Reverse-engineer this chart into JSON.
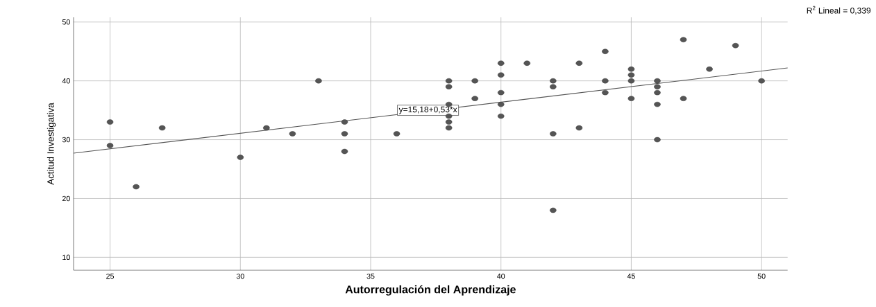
{
  "chart_data": {
    "type": "scatter",
    "xlabel": "Autorregulación del Aprendizaje",
    "ylabel": "Actitud Investigativa",
    "xlim": [
      23.6,
      51
    ],
    "ylim": [
      7.8,
      50.8
    ],
    "xticks": [
      25,
      30,
      35,
      40,
      45,
      50
    ],
    "yticks": [
      10,
      20,
      30,
      40,
      50
    ],
    "grid": true,
    "series": [
      {
        "type": "scatter",
        "color": "#555555",
        "marker": "circle",
        "x": [
          25,
          25,
          26,
          27,
          30,
          31,
          32,
          33,
          34,
          34,
          34,
          36,
          38,
          38,
          38,
          38,
          38,
          38,
          39,
          39,
          40,
          40,
          40,
          40,
          40,
          41,
          42,
          42,
          42,
          42,
          43,
          43,
          44,
          44,
          44,
          45,
          45,
          45,
          45,
          46,
          46,
          46,
          46,
          46,
          47,
          47,
          48,
          49,
          50
        ],
        "values": [
          33,
          29,
          22,
          32,
          27,
          32,
          31,
          40,
          33,
          31,
          28,
          31,
          40,
          39,
          36,
          34,
          33,
          32,
          40,
          37,
          43,
          41,
          38,
          36,
          34,
          43,
          40,
          39,
          31,
          18,
          43,
          32,
          45,
          40,
          38,
          42,
          41,
          40,
          37,
          40,
          39,
          38,
          36,
          30,
          47,
          37,
          42,
          46,
          40
        ]
      },
      {
        "type": "line",
        "color": "#555555",
        "marker": "none",
        "x": [
          23.6,
          51
        ],
        "values": [
          27.7,
          42.2
        ]
      }
    ],
    "annotations": [
      {
        "text": "y=15,18+0,53*x",
        "x": 37.2,
        "y": 35
      },
      "R$^{2}$ Lineal = 0,339"
    ]
  }
}
